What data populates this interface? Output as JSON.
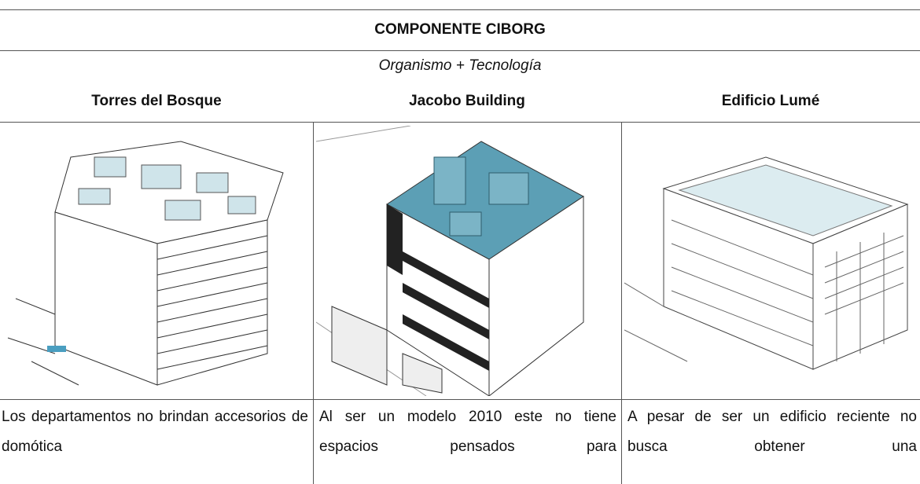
{
  "header": {
    "title": "COMPONENTE CIBORG",
    "subtitle": "Organismo + Tecnología"
  },
  "table": {
    "columns": [
      "Torres del Bosque",
      "Jacobo Building",
      "Edificio Lumé"
    ],
    "descriptions": [
      "Los departamentos no brindan accesorios de domótica",
      "Al ser un modelo 2010 este no tiene espacios pensados para",
      "A pesar de ser un edificio reciente no busca obtener una"
    ]
  }
}
